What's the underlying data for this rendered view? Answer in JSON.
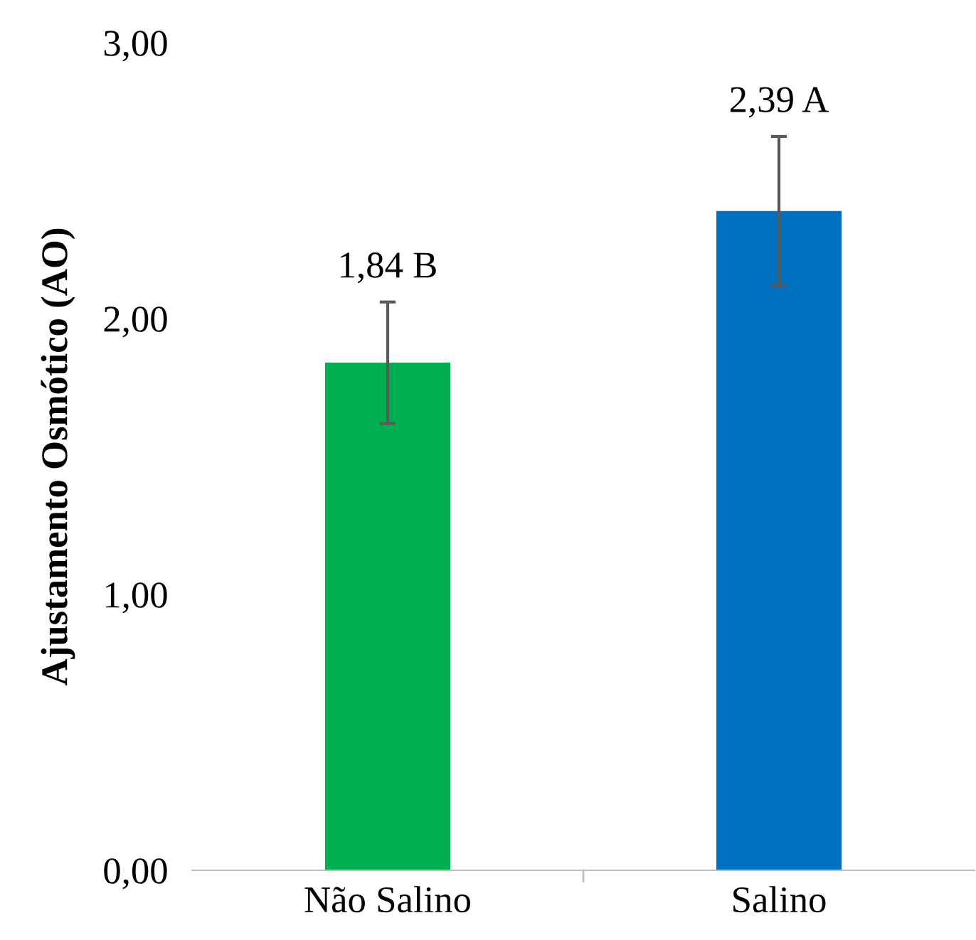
{
  "chart_data": {
    "type": "bar",
    "ylabel": "Ajustamento Osmótico (AO)",
    "categories": [
      "Não Salino",
      "Salino"
    ],
    "values": [
      1.84,
      2.39
    ],
    "colors": [
      "#00b050",
      "#0070c0"
    ],
    "errors": [
      0.22,
      0.27
    ],
    "value_labels": [
      "1,84 B",
      "2,39 A"
    ],
    "ylim": [
      0,
      3
    ],
    "yticks": [
      {
        "value": 0,
        "label": "0,00"
      },
      {
        "value": 1,
        "label": "1,00"
      },
      {
        "value": 2,
        "label": "2,00"
      },
      {
        "value": 3,
        "label": "3,00"
      }
    ],
    "grid": false,
    "legend": false
  }
}
